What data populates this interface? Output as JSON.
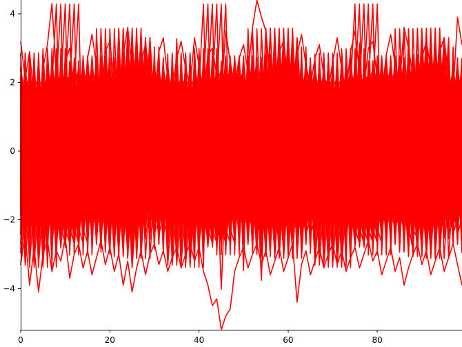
{
  "chart_data": {
    "type": "line",
    "title": "",
    "xlabel": "",
    "ylabel": "",
    "xlim": [
      0,
      99
    ],
    "ylim": [
      -5.2,
      4.4
    ],
    "grid": false,
    "legend": "none",
    "color": "#ff0000",
    "x_ticks": [
      0,
      20,
      40,
      60,
      80
    ],
    "y_ticks": [
      -4,
      -2,
      0,
      2,
      4
    ],
    "x_tick_labels": [
      "0",
      "20",
      "40",
      "60",
      "80"
    ],
    "y_tick_labels": [
      "−4",
      "−2",
      "0",
      "2",
      "4"
    ],
    "n_series": 1000,
    "x": [
      0,
      1,
      2,
      3,
      4,
      5,
      6,
      7,
      8,
      9,
      10,
      11,
      12,
      13,
      14,
      15,
      16,
      17,
      18,
      19,
      20,
      21,
      22,
      23,
      24,
      25,
      26,
      27,
      28,
      29,
      30,
      31,
      32,
      33,
      34,
      35,
      36,
      37,
      38,
      39,
      40,
      41,
      42,
      43,
      44,
      45,
      46,
      47,
      48,
      49,
      50,
      51,
      52,
      53,
      54,
      55,
      56,
      57,
      58,
      59,
      60,
      61,
      62,
      63,
      64,
      65,
      66,
      67,
      68,
      69,
      70,
      71,
      72,
      73,
      74,
      75,
      76,
      77,
      78,
      79,
      80,
      81,
      82,
      83,
      84,
      85,
      86,
      87,
      88,
      89,
      90,
      91,
      92,
      93,
      94,
      95,
      96,
      97,
      98,
      99
    ],
    "series": [
      {
        "values": [
          3.2,
          2.1,
          2.9,
          1.5,
          0.8,
          2.4,
          3.1,
          4.3,
          2.2,
          1.1,
          2.6,
          3.0,
          1.8,
          2.3,
          0.9,
          2.7,
          3.4,
          2.5,
          1.6,
          2.9,
          3.2,
          2.0,
          1.4,
          2.8,
          3.6,
          2.4,
          1.7,
          2.6,
          3.1,
          2.2,
          1.5,
          2.9,
          3.3,
          2.1,
          1.8,
          2.7,
          3.2,
          2.4,
          1.9,
          3.3,
          2.5,
          1.6,
          2.8,
          3.0,
          2.2,
          1.7,
          3.5,
          2.6,
          1.9,
          2.7,
          3.1,
          2.3,
          3.6,
          4.4,
          3.9,
          3.5,
          2.1,
          1.8,
          2.9,
          3.2,
          2.0,
          1.6,
          2.8,
          3.4,
          2.5,
          1.9,
          2.7,
          3.1,
          2.2,
          1.8,
          2.6,
          3.3,
          2.4,
          1.7,
          2.9,
          3.5,
          2.3,
          1.8,
          3.0,
          3.2,
          2.1,
          1.6,
          2.8,
          3.4,
          2.5,
          1.9,
          3.6,
          3.0,
          2.2,
          1.8,
          2.7,
          3.2,
          2.4,
          1.9,
          2.9,
          3.3,
          2.1,
          1.7,
          3.9,
          3.1
        ]
      },
      {
        "values": [
          -3.3,
          -2.4,
          -3.9,
          -2.8,
          -4.1,
          -3.0,
          -2.6,
          -3.5,
          -2.9,
          -3.2,
          -2.5,
          -3.7,
          -3.0,
          -2.7,
          -3.4,
          -2.9,
          -3.6,
          -3.1,
          -2.6,
          -3.3,
          -2.8,
          -3.5,
          -3.0,
          -3.9,
          -3.2,
          -4.1,
          -3.4,
          -2.9,
          -3.6,
          -3.0,
          -2.7,
          -3.3,
          -2.9,
          -3.5,
          -3.1,
          -2.8,
          -3.4,
          -3.0,
          -2.7,
          -3.2,
          -2.8,
          -3.5,
          -3.9,
          -4.5,
          -4.3,
          -5.2,
          -4.8,
          -4.6,
          -3.5,
          -3.1,
          -2.8,
          -3.4,
          -3.0,
          -2.7,
          -3.3,
          -2.9,
          -3.6,
          -3.2,
          -2.8,
          -3.5,
          -3.1,
          -2.7,
          -4.4,
          -3.3,
          -2.9,
          -3.6,
          -3.2,
          -2.8,
          -3.4,
          -3.0,
          -2.7,
          -3.3,
          -2.9,
          -3.5,
          -3.1,
          -2.8,
          -3.4,
          -3.0,
          -2.6,
          -3.2,
          -2.9,
          -3.6,
          -3.2,
          -2.8,
          -3.5,
          -3.1,
          -3.9,
          -3.4,
          -3.0,
          -2.7,
          -3.3,
          -2.9,
          -3.6,
          -3.2,
          -2.8,
          -3.5,
          -3.1,
          -2.7,
          -3.3,
          -3.9
        ]
      }
    ]
  }
}
